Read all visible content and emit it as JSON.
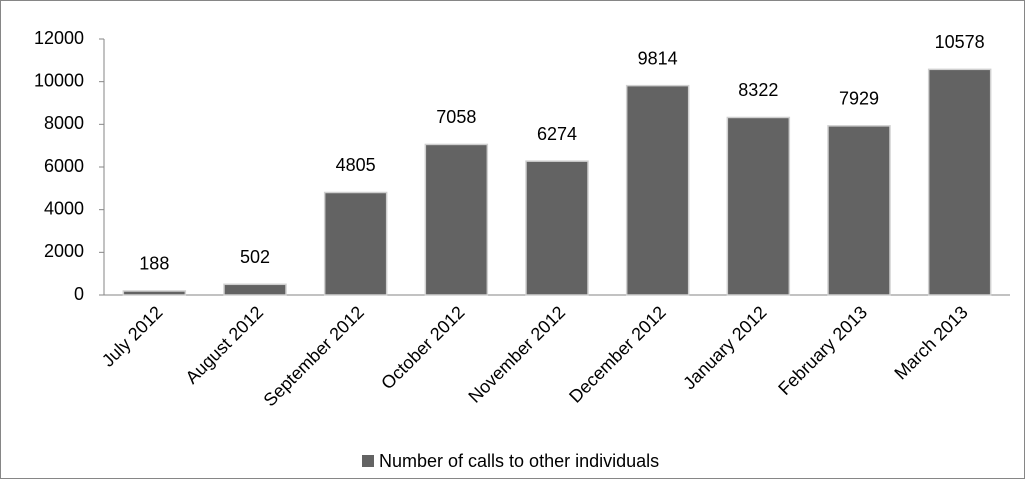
{
  "chart_data": {
    "type": "bar",
    "categories": [
      "July 2012",
      "August 2012",
      "September 2012",
      "October 2012",
      "November 2012",
      "December 2012",
      "January 2012",
      "February 2013",
      "March 2013"
    ],
    "series": [
      {
        "name": "Number of calls to other individuals",
        "color": "#636363",
        "values": [
          188,
          502,
          4805,
          7058,
          6274,
          9814,
          8322,
          7929,
          10578
        ]
      }
    ],
    "ylim": [
      0,
      12000
    ],
    "yticks": [
      0,
      2000,
      4000,
      6000,
      8000,
      10000,
      12000
    ],
    "grid": false,
    "legend": "bottom"
  }
}
